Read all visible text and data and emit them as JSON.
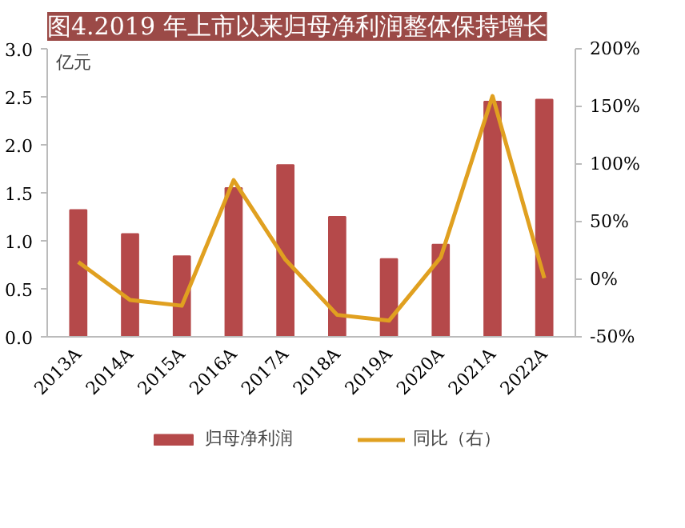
{
  "chart_data": {
    "type": "bar",
    "title": "图4.2019 年上市以来归母净利润整体保持增长",
    "ylabel": "亿元",
    "categories": [
      "2013A",
      "2014A",
      "2015A",
      "2016A",
      "2017A",
      "2018A",
      "2019A",
      "2020A",
      "2021A",
      "2022A"
    ],
    "series": [
      {
        "name": "归母净利润",
        "color": "#b5494a",
        "values": [
          1.32,
          1.07,
          0.84,
          1.55,
          1.79,
          1.25,
          0.81,
          0.96,
          2.45,
          2.47
        ]
      },
      {
        "name": "同比（右）",
        "type": "line",
        "axis": "y2",
        "color": "#e0a020",
        "values": [
          15,
          -18,
          -23,
          86,
          17,
          -31,
          -36,
          19,
          159,
          1
        ]
      }
    ],
    "ylim": [
      0,
      3.0
    ],
    "yticks": [
      {
        "value": 0,
        "label": "0.0"
      },
      {
        "value": 0.5,
        "label": "0.5"
      },
      {
        "value": 1.0,
        "label": "1.0"
      },
      {
        "value": 1.5,
        "label": "1.5"
      },
      {
        "value": 2.0,
        "label": "2.0"
      },
      {
        "value": 2.5,
        "label": "2.5"
      },
      {
        "value": 3.0,
        "label": "3.0"
      }
    ],
    "y2lim": [
      -50,
      200
    ],
    "y2ticks": [
      {
        "value": -50,
        "label": "-50%"
      },
      {
        "value": 0,
        "label": "0%"
      },
      {
        "value": 50,
        "label": "50%"
      },
      {
        "value": 100,
        "label": "100%"
      },
      {
        "value": 150,
        "label": "150%"
      },
      {
        "value": 200,
        "label": "200%"
      }
    ],
    "legend": "bottom",
    "grid": false
  }
}
